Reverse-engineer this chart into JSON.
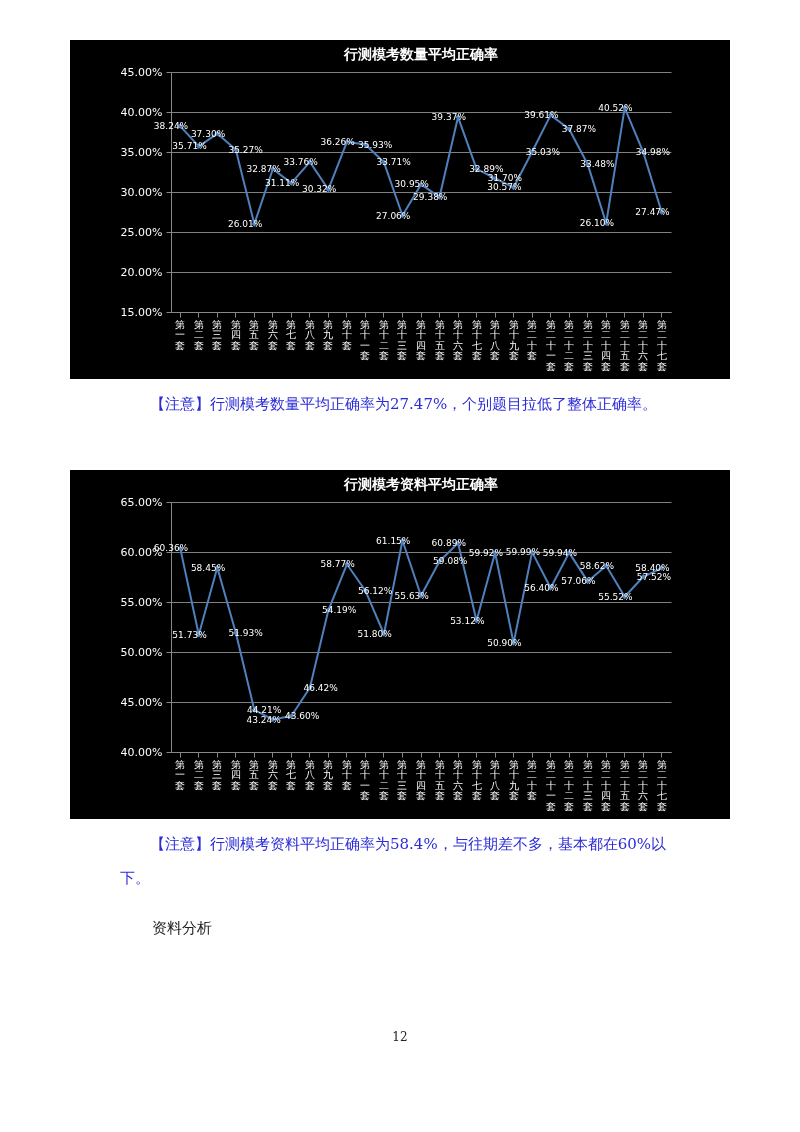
{
  "chart_data": [
    {
      "type": "line",
      "title": "行测模考数量平均正确率",
      "categories": [
        "第一套",
        "第二套",
        "第三套",
        "第四套",
        "第五套",
        "第六套",
        "第七套",
        "第八套",
        "第九套",
        "第十套",
        "第十一套",
        "第十二套",
        "第十三套",
        "第十四套",
        "第十五套",
        "第十六套",
        "第十七套",
        "第十八套",
        "第十九套",
        "第二十套",
        "第二十一套",
        "第二十二套",
        "第二十三套",
        "第二十四套",
        "第二十五套",
        "第二十六套",
        "第二十七套"
      ],
      "series": [
        {
          "color": "#4f81bd",
          "values": [
            38.24,
            35.71,
            37.3,
            35.27,
            26.01,
            32.87,
            31.11,
            33.76,
            30.32,
            36.26,
            35.93,
            33.71,
            27.06,
            30.95,
            29.38,
            39.37,
            32.89,
            31.7,
            30.57,
            35.03,
            39.61,
            37.87,
            33.48,
            26.1,
            40.52,
            34.98,
            27.47
          ],
          "value_labels": [
            "38.24%",
            "35.71%",
            "37.30%",
            "35.27%",
            "26.01%",
            "32.87%",
            "31.11%",
            "33.76%",
            "30.32%",
            "36.26%",
            "35.93%",
            "33.71%",
            "27.06%",
            "30.95%",
            "29.38%",
            "39.37%",
            "32.89%",
            "31.70%",
            "30.57%",
            "35.03%",
            "39.61%",
            "37.87%",
            "33.48%",
            "26.10%",
            "40.52%",
            "34.98%",
            "27.47%"
          ]
        }
      ],
      "ylim": [
        15,
        45
      ],
      "yticks": [
        {
          "value": 15,
          "label": "15.00%"
        },
        {
          "value": 20,
          "label": "20.00%"
        },
        {
          "value": 25,
          "label": "25.00%"
        },
        {
          "value": 30,
          "label": "30.00%"
        },
        {
          "value": 35,
          "label": "35.00%"
        },
        {
          "value": 40,
          "label": "40.00%"
        },
        {
          "value": 45,
          "label": "45.00%"
        }
      ],
      "grid": "y",
      "marker": "diamond",
      "line_style": "solid",
      "annotations": [
        "【注意】行测模考数量平均正确率为27.47%，个别题目拉低了整体正确率。"
      ]
    },
    {
      "type": "line",
      "title": "行测模考资料平均正确率",
      "categories": [
        "第一套",
        "第二套",
        "第三套",
        "第四套",
        "第五套",
        "第六套",
        "第七套",
        "第八套",
        "第九套",
        "第十套",
        "第十一套",
        "第十二套",
        "第十三套",
        "第十四套",
        "第十五套",
        "第十六套",
        "第十七套",
        "第十八套",
        "第十九套",
        "第二十套",
        "第二十一套",
        "第二十二套",
        "第二十三套",
        "第二十四套",
        "第二十五套",
        "第二十六套",
        "第二十七套"
      ],
      "series": [
        {
          "color": "#4f81bd",
          "values": [
            60.36,
            51.73,
            58.45,
            51.93,
            44.21,
            43.24,
            43.6,
            46.42,
            54.19,
            58.77,
            56.12,
            51.8,
            61.15,
            55.63,
            59.08,
            60.89,
            53.12,
            59.92,
            50.9,
            59.99,
            56.4,
            59.94,
            57.06,
            58.62,
            55.52,
            57.52,
            58.4
          ],
          "value_labels": [
            "60.36%",
            "51.73%",
            "58.45%",
            "51.93%",
            "44.21%",
            "43.24%",
            "43.60%",
            "46.42%",
            "54.19%",
            "58.77%",
            "56.12%",
            "51.80%",
            "61.15%",
            "55.63%",
            "59.08%",
            "60.89%",
            "53.12%",
            "59.92%",
            "50.90%",
            "59.99%",
            "56.40%",
            "59.94%",
            "57.06%",
            "58.62%",
            "55.52%",
            "57.52%",
            "58.40%"
          ]
        }
      ],
      "ylim": [
        40,
        65
      ],
      "yticks": [
        {
          "value": 40,
          "label": "40.00%"
        },
        {
          "value": 45,
          "label": "45.00%"
        },
        {
          "value": 50,
          "label": "50.00%"
        },
        {
          "value": 55,
          "label": "55.00%"
        },
        {
          "value": 60,
          "label": "60.00%"
        },
        {
          "value": 65,
          "label": "65.00%"
        }
      ],
      "grid": "y",
      "marker": "diamond",
      "line_style": "solid",
      "annotations": [
        "【注意】行测模考资料平均正确率为58.4%，与往期差不多，基本都在60%以下。",
        "资料分析",
        "12"
      ]
    }
  ]
}
